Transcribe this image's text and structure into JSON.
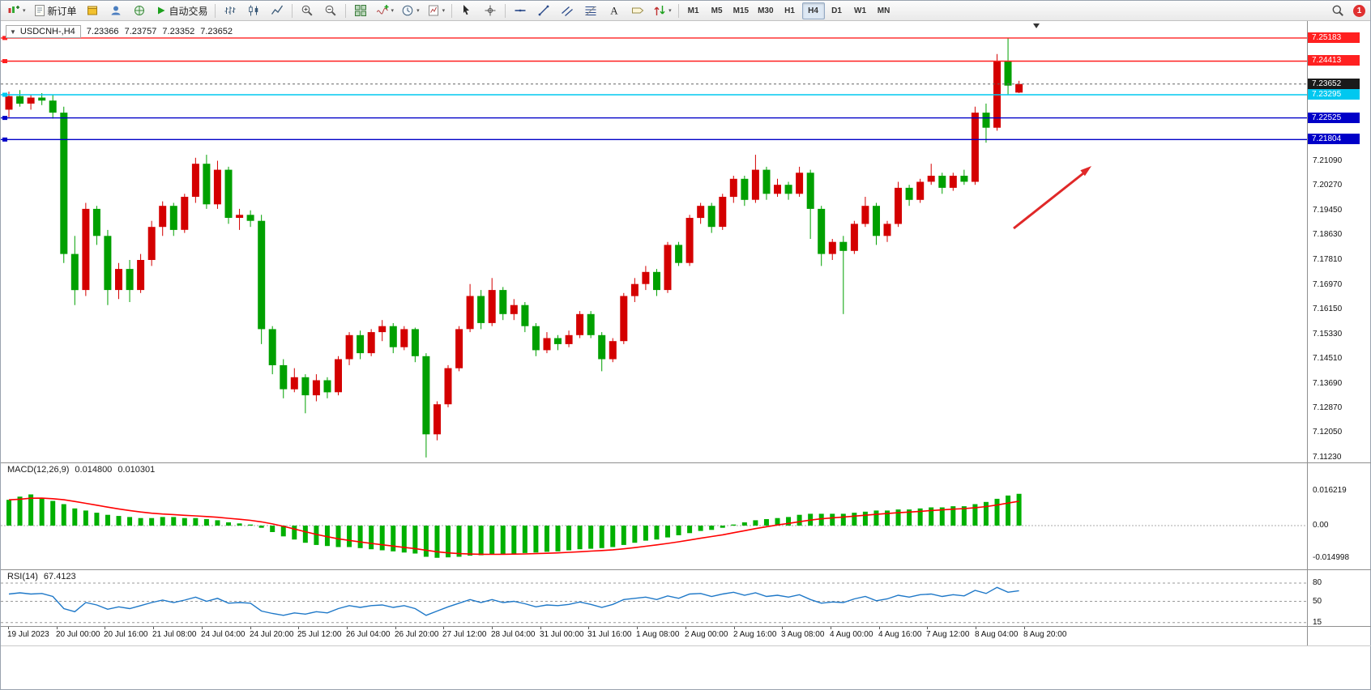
{
  "toolbar": {
    "buttons": [
      {
        "name": "new-chart-button",
        "icon": "chart-new-icon",
        "caret": true
      },
      {
        "name": "new-order-button",
        "icon": "new-order-icon",
        "label": "新订单"
      },
      {
        "name": "market-button",
        "icon": "box-icon"
      },
      {
        "name": "community-button",
        "icon": "avatar-icon"
      },
      {
        "name": "web-button",
        "icon": "globe-icon"
      },
      {
        "name": "auto-trading-button",
        "icon": "autotrade-icon",
        "label": "自动交易"
      },
      {
        "sep": true
      },
      {
        "name": "bar-chart-button",
        "icon": "bar-chart-icon"
      },
      {
        "name": "candlestick-button",
        "icon": "candlestick-icon"
      },
      {
        "name": "line-chart-button",
        "icon": "line-chart-icon"
      },
      {
        "sep": true
      },
      {
        "name": "zoom-in-button",
        "icon": "zoom-in-icon"
      },
      {
        "name": "zoom-out-button",
        "icon": "zoom-out-icon"
      },
      {
        "sep": true
      },
      {
        "name": "tile-windows-button",
        "icon": "tile-windows-icon"
      },
      {
        "name": "indicators-button",
        "icon": "indicators-icon",
        "caret": true
      },
      {
        "name": "periods-button",
        "icon": "clock-icon",
        "caret": true
      },
      {
        "name": "templates-button",
        "icon": "template-icon",
        "caret": true
      },
      {
        "sep": true
      },
      {
        "name": "cursor-button",
        "icon": "cursor-icon"
      },
      {
        "name": "crosshair-button",
        "icon": "crosshair-icon"
      },
      {
        "sep": true
      },
      {
        "name": "horizontal-line-button",
        "icon": "hline-icon"
      },
      {
        "name": "trendline-button",
        "icon": "trendline-icon"
      },
      {
        "name": "equidistant-channel-button",
        "icon": "channel-icon"
      },
      {
        "name": "fibonacci-button",
        "icon": "fibo-icon"
      },
      {
        "name": "text-button",
        "icon": "text-icon"
      },
      {
        "name": "text-label-button",
        "icon": "label-icon"
      },
      {
        "name": "arrows-button",
        "icon": "arrows-icon",
        "caret": true
      },
      {
        "sep": true
      }
    ],
    "timeframes": {
      "items": [
        "M1",
        "M5",
        "M15",
        "M30",
        "H1",
        "H4",
        "D1",
        "W1",
        "MN"
      ],
      "active": "H4"
    },
    "notification_count": "1"
  },
  "chart": {
    "symbol_label": "USDCNH-,H4",
    "ohlc": {
      "open": "7.23366",
      "high": "7.23757",
      "low": "7.23352",
      "close": "7.23652"
    },
    "colors": {
      "up": "#D40000",
      "down": "#00A000",
      "macd_hist": "#00B000",
      "macd_signal": "#FF0000",
      "rsi_line": "#1E78C8",
      "annotation": "#E02828"
    },
    "lines": [
      {
        "label": "7.25183",
        "price": 7.25183,
        "color": "#FF2020"
      },
      {
        "label": "7.24413",
        "price": 7.24413,
        "color": "#FF2020"
      },
      {
        "label": "7.23295",
        "price": 7.23295,
        "color": "#00C8F0"
      },
      {
        "label": "7.22525",
        "price": 7.22525,
        "color": "#0000C8"
      },
      {
        "label": "7.21804",
        "price": 7.21804,
        "color": "#0000C8"
      }
    ],
    "current_price": {
      "label": "7.23652",
      "price": 7.23652,
      "bg": "#1a1a1a"
    },
    "price_ticks": [
      "7.21090",
      "7.20270",
      "7.19450",
      "7.18630",
      "7.17810",
      "7.16970",
      "7.16150",
      "7.15330",
      "7.14510",
      "7.13690",
      "7.12870",
      "7.12050",
      "7.11230"
    ],
    "time_labels": [
      "19 Jul 2023",
      "20 Jul 00:00",
      "20 Jul 16:00",
      "21 Jul 08:00",
      "24 Jul 04:00",
      "24 Jul 20:00",
      "25 Jul 12:00",
      "26 Jul 04:00",
      "26 Jul 20:00",
      "27 Jul 12:00",
      "28 Jul 04:00",
      "31 Jul 00:00",
      "31 Jul 16:00",
      "1 Aug 08:00",
      "2 Aug 00:00",
      "2 Aug 16:00",
      "3 Aug 08:00",
      "4 Aug 00:00",
      "4 Aug 16:00",
      "7 Aug 12:00",
      "8 Aug 04:00",
      "8 Aug 20:00"
    ],
    "candles": [
      [
        7.228,
        7.234,
        7.2255,
        7.2325
      ],
      [
        7.2325,
        7.2345,
        7.229,
        7.23
      ],
      [
        7.23,
        7.233,
        7.228,
        7.232
      ],
      [
        7.232,
        7.2335,
        7.2295,
        7.231
      ],
      [
        7.231,
        7.233,
        7.225,
        7.227
      ],
      [
        7.227,
        7.229,
        7.177,
        7.18
      ],
      [
        7.18,
        7.186,
        7.163,
        7.168
      ],
      [
        7.168,
        7.197,
        7.166,
        7.195
      ],
      [
        7.195,
        7.196,
        7.183,
        7.186
      ],
      [
        7.186,
        7.188,
        7.163,
        7.168
      ],
      [
        7.168,
        7.177,
        7.165,
        7.175
      ],
      [
        7.175,
        7.178,
        7.164,
        7.168
      ],
      [
        7.168,
        7.18,
        7.167,
        7.178
      ],
      [
        7.178,
        7.191,
        7.176,
        7.189
      ],
      [
        7.189,
        7.1975,
        7.186,
        7.196
      ],
      [
        7.196,
        7.197,
        7.186,
        7.188
      ],
      [
        7.188,
        7.2,
        7.187,
        7.199
      ],
      [
        7.199,
        7.212,
        7.197,
        7.21
      ],
      [
        7.21,
        7.213,
        7.195,
        7.1965
      ],
      [
        7.1965,
        7.211,
        7.195,
        7.208
      ],
      [
        7.208,
        7.209,
        7.19,
        7.192
      ],
      [
        7.192,
        7.195,
        7.188,
        7.193
      ],
      [
        7.193,
        7.1945,
        7.189,
        7.191
      ],
      [
        7.191,
        7.193,
        7.15,
        7.155
      ],
      [
        7.155,
        7.156,
        7.14,
        7.143
      ],
      [
        7.143,
        7.145,
        7.132,
        7.135
      ],
      [
        7.135,
        7.142,
        7.134,
        7.139
      ],
      [
        7.139,
        7.14,
        7.127,
        7.133
      ],
      [
        7.133,
        7.14,
        7.131,
        7.138
      ],
      [
        7.138,
        7.139,
        7.132,
        7.134
      ],
      [
        7.134,
        7.146,
        7.133,
        7.145
      ],
      [
        7.145,
        7.154,
        7.143,
        7.153
      ],
      [
        7.153,
        7.1545,
        7.145,
        7.147
      ],
      [
        7.147,
        7.155,
        7.146,
        7.154
      ],
      [
        7.154,
        7.158,
        7.151,
        7.156
      ],
      [
        7.156,
        7.157,
        7.147,
        7.149
      ],
      [
        7.149,
        7.156,
        7.148,
        7.155
      ],
      [
        7.155,
        7.1555,
        7.144,
        7.146
      ],
      [
        7.146,
        7.147,
        7.1123,
        7.12
      ],
      [
        7.12,
        7.131,
        7.118,
        7.13
      ],
      [
        7.13,
        7.143,
        7.129,
        7.142
      ],
      [
        7.142,
        7.156,
        7.141,
        7.155
      ],
      [
        7.155,
        7.17,
        7.154,
        7.166
      ],
      [
        7.166,
        7.168,
        7.155,
        7.157
      ],
      [
        7.157,
        7.172,
        7.156,
        7.168
      ],
      [
        7.168,
        7.169,
        7.158,
        7.16
      ],
      [
        7.16,
        7.165,
        7.158,
        7.163
      ],
      [
        7.163,
        7.164,
        7.154,
        7.156
      ],
      [
        7.156,
        7.157,
        7.146,
        7.148
      ],
      [
        7.148,
        7.154,
        7.147,
        7.152
      ],
      [
        7.152,
        7.153,
        7.148,
        7.15
      ],
      [
        7.15,
        7.1545,
        7.149,
        7.153
      ],
      [
        7.153,
        7.161,
        7.152,
        7.16
      ],
      [
        7.16,
        7.161,
        7.152,
        7.153
      ],
      [
        7.153,
        7.154,
        7.141,
        7.145
      ],
      [
        7.145,
        7.152,
        7.144,
        7.151
      ],
      [
        7.151,
        7.167,
        7.15,
        7.166
      ],
      [
        7.166,
        7.172,
        7.164,
        7.17
      ],
      [
        7.17,
        7.176,
        7.168,
        7.174
      ],
      [
        7.174,
        7.175,
        7.166,
        7.168
      ],
      [
        7.168,
        7.184,
        7.167,
        7.183
      ],
      [
        7.183,
        7.184,
        7.176,
        7.177
      ],
      [
        7.177,
        7.193,
        7.176,
        7.192
      ],
      [
        7.192,
        7.197,
        7.19,
        7.196
      ],
      [
        7.196,
        7.197,
        7.187,
        7.189
      ],
      [
        7.189,
        7.2,
        7.188,
        7.199
      ],
      [
        7.199,
        7.206,
        7.197,
        7.205
      ],
      [
        7.205,
        7.206,
        7.196,
        7.198
      ],
      [
        7.198,
        7.213,
        7.197,
        7.208
      ],
      [
        7.208,
        7.209,
        7.198,
        7.2
      ],
      [
        7.2,
        7.205,
        7.199,
        7.203
      ],
      [
        7.203,
        7.204,
        7.198,
        7.2
      ],
      [
        7.2,
        7.209,
        7.199,
        7.207
      ],
      [
        7.207,
        7.208,
        7.185,
        7.195
      ],
      [
        7.195,
        7.196,
        7.176,
        7.18
      ],
      [
        7.18,
        7.185,
        7.178,
        7.184
      ],
      [
        7.184,
        7.186,
        7.16,
        7.181
      ],
      [
        7.181,
        7.191,
        7.18,
        7.19
      ],
      [
        7.19,
        7.199,
        7.189,
        7.196
      ],
      [
        7.196,
        7.197,
        7.183,
        7.186
      ],
      [
        7.186,
        7.191,
        7.184,
        7.19
      ],
      [
        7.19,
        7.204,
        7.189,
        7.202
      ],
      [
        7.202,
        7.203,
        7.196,
        7.198
      ],
      [
        7.198,
        7.205,
        7.197,
        7.204
      ],
      [
        7.204,
        7.21,
        7.203,
        7.206
      ],
      [
        7.206,
        7.207,
        7.2,
        7.202
      ],
      [
        7.202,
        7.207,
        7.201,
        7.206
      ],
      [
        7.206,
        7.208,
        7.203,
        7.204
      ],
      [
        7.204,
        7.229,
        7.203,
        7.227
      ],
      [
        7.227,
        7.23,
        7.217,
        7.222
      ],
      [
        7.222,
        7.2465,
        7.221,
        7.244
      ],
      [
        7.244,
        7.2518,
        7.233,
        7.236
      ],
      [
        7.23366,
        7.23757,
        7.23352,
        7.23652
      ]
    ]
  },
  "macd": {
    "name": "MACD(12,26,9)",
    "main_value": "0.014800",
    "signal_value": "0.010301",
    "axis_labels": [
      "0.016219",
      "0.00",
      "-0.014998"
    ],
    "histogram": [
      0.012,
      0.0135,
      0.0145,
      0.013,
      0.0115,
      0.01,
      0.008,
      0.007,
      0.006,
      0.005,
      0.0045,
      0.004,
      0.0035,
      0.0035,
      0.004,
      0.004,
      0.0035,
      0.0035,
      0.003,
      0.0025,
      0.0015,
      0.001,
      0.0005,
      -0.001,
      -0.003,
      -0.005,
      -0.0065,
      -0.008,
      -0.009,
      -0.0095,
      -0.01,
      -0.01,
      -0.0105,
      -0.011,
      -0.0115,
      -0.012,
      -0.0125,
      -0.013,
      -0.0145,
      -0.015,
      -0.0148,
      -0.0145,
      -0.014,
      -0.0138,
      -0.0135,
      -0.0132,
      -0.013,
      -0.0128,
      -0.0125,
      -0.0122,
      -0.012,
      -0.0115,
      -0.011,
      -0.0108,
      -0.0105,
      -0.01,
      -0.009,
      -0.008,
      -0.007,
      -0.0065,
      -0.0055,
      -0.0045,
      -0.0035,
      -0.0025,
      -0.002,
      -0.001,
      0.0005,
      0.0015,
      0.0025,
      0.003,
      0.0035,
      0.004,
      0.005,
      0.0055,
      0.0055,
      0.0055,
      0.0055,
      0.006,
      0.0065,
      0.007,
      0.007,
      0.0075,
      0.0075,
      0.008,
      0.0085,
      0.0085,
      0.009,
      0.009,
      0.01,
      0.011,
      0.0125,
      0.014,
      0.0148
    ]
  },
  "rsi": {
    "name": "RSI(14)",
    "value": "67.4123",
    "levels": [
      80,
      50,
      15
    ],
    "series": [
      62,
      64,
      62,
      63,
      58,
      38,
      33,
      48,
      44,
      37,
      41,
      38,
      43,
      48,
      52,
      48,
      52,
      57,
      50,
      55,
      47,
      48,
      47,
      34,
      30,
      27,
      31,
      29,
      33,
      31,
      38,
      43,
      40,
      43,
      44,
      40,
      43,
      38,
      27,
      34,
      41,
      47,
      53,
      48,
      53,
      48,
      50,
      46,
      41,
      44,
      43,
      45,
      49,
      45,
      40,
      45,
      53,
      55,
      57,
      53,
      59,
      55,
      62,
      63,
      58,
      62,
      65,
      60,
      64,
      58,
      60,
      57,
      61,
      53,
      47,
      49,
      48,
      54,
      58,
      51,
      54,
      60,
      57,
      61,
      62,
      58,
      61,
      59,
      68,
      63,
      73,
      65,
      67.41
    ]
  }
}
